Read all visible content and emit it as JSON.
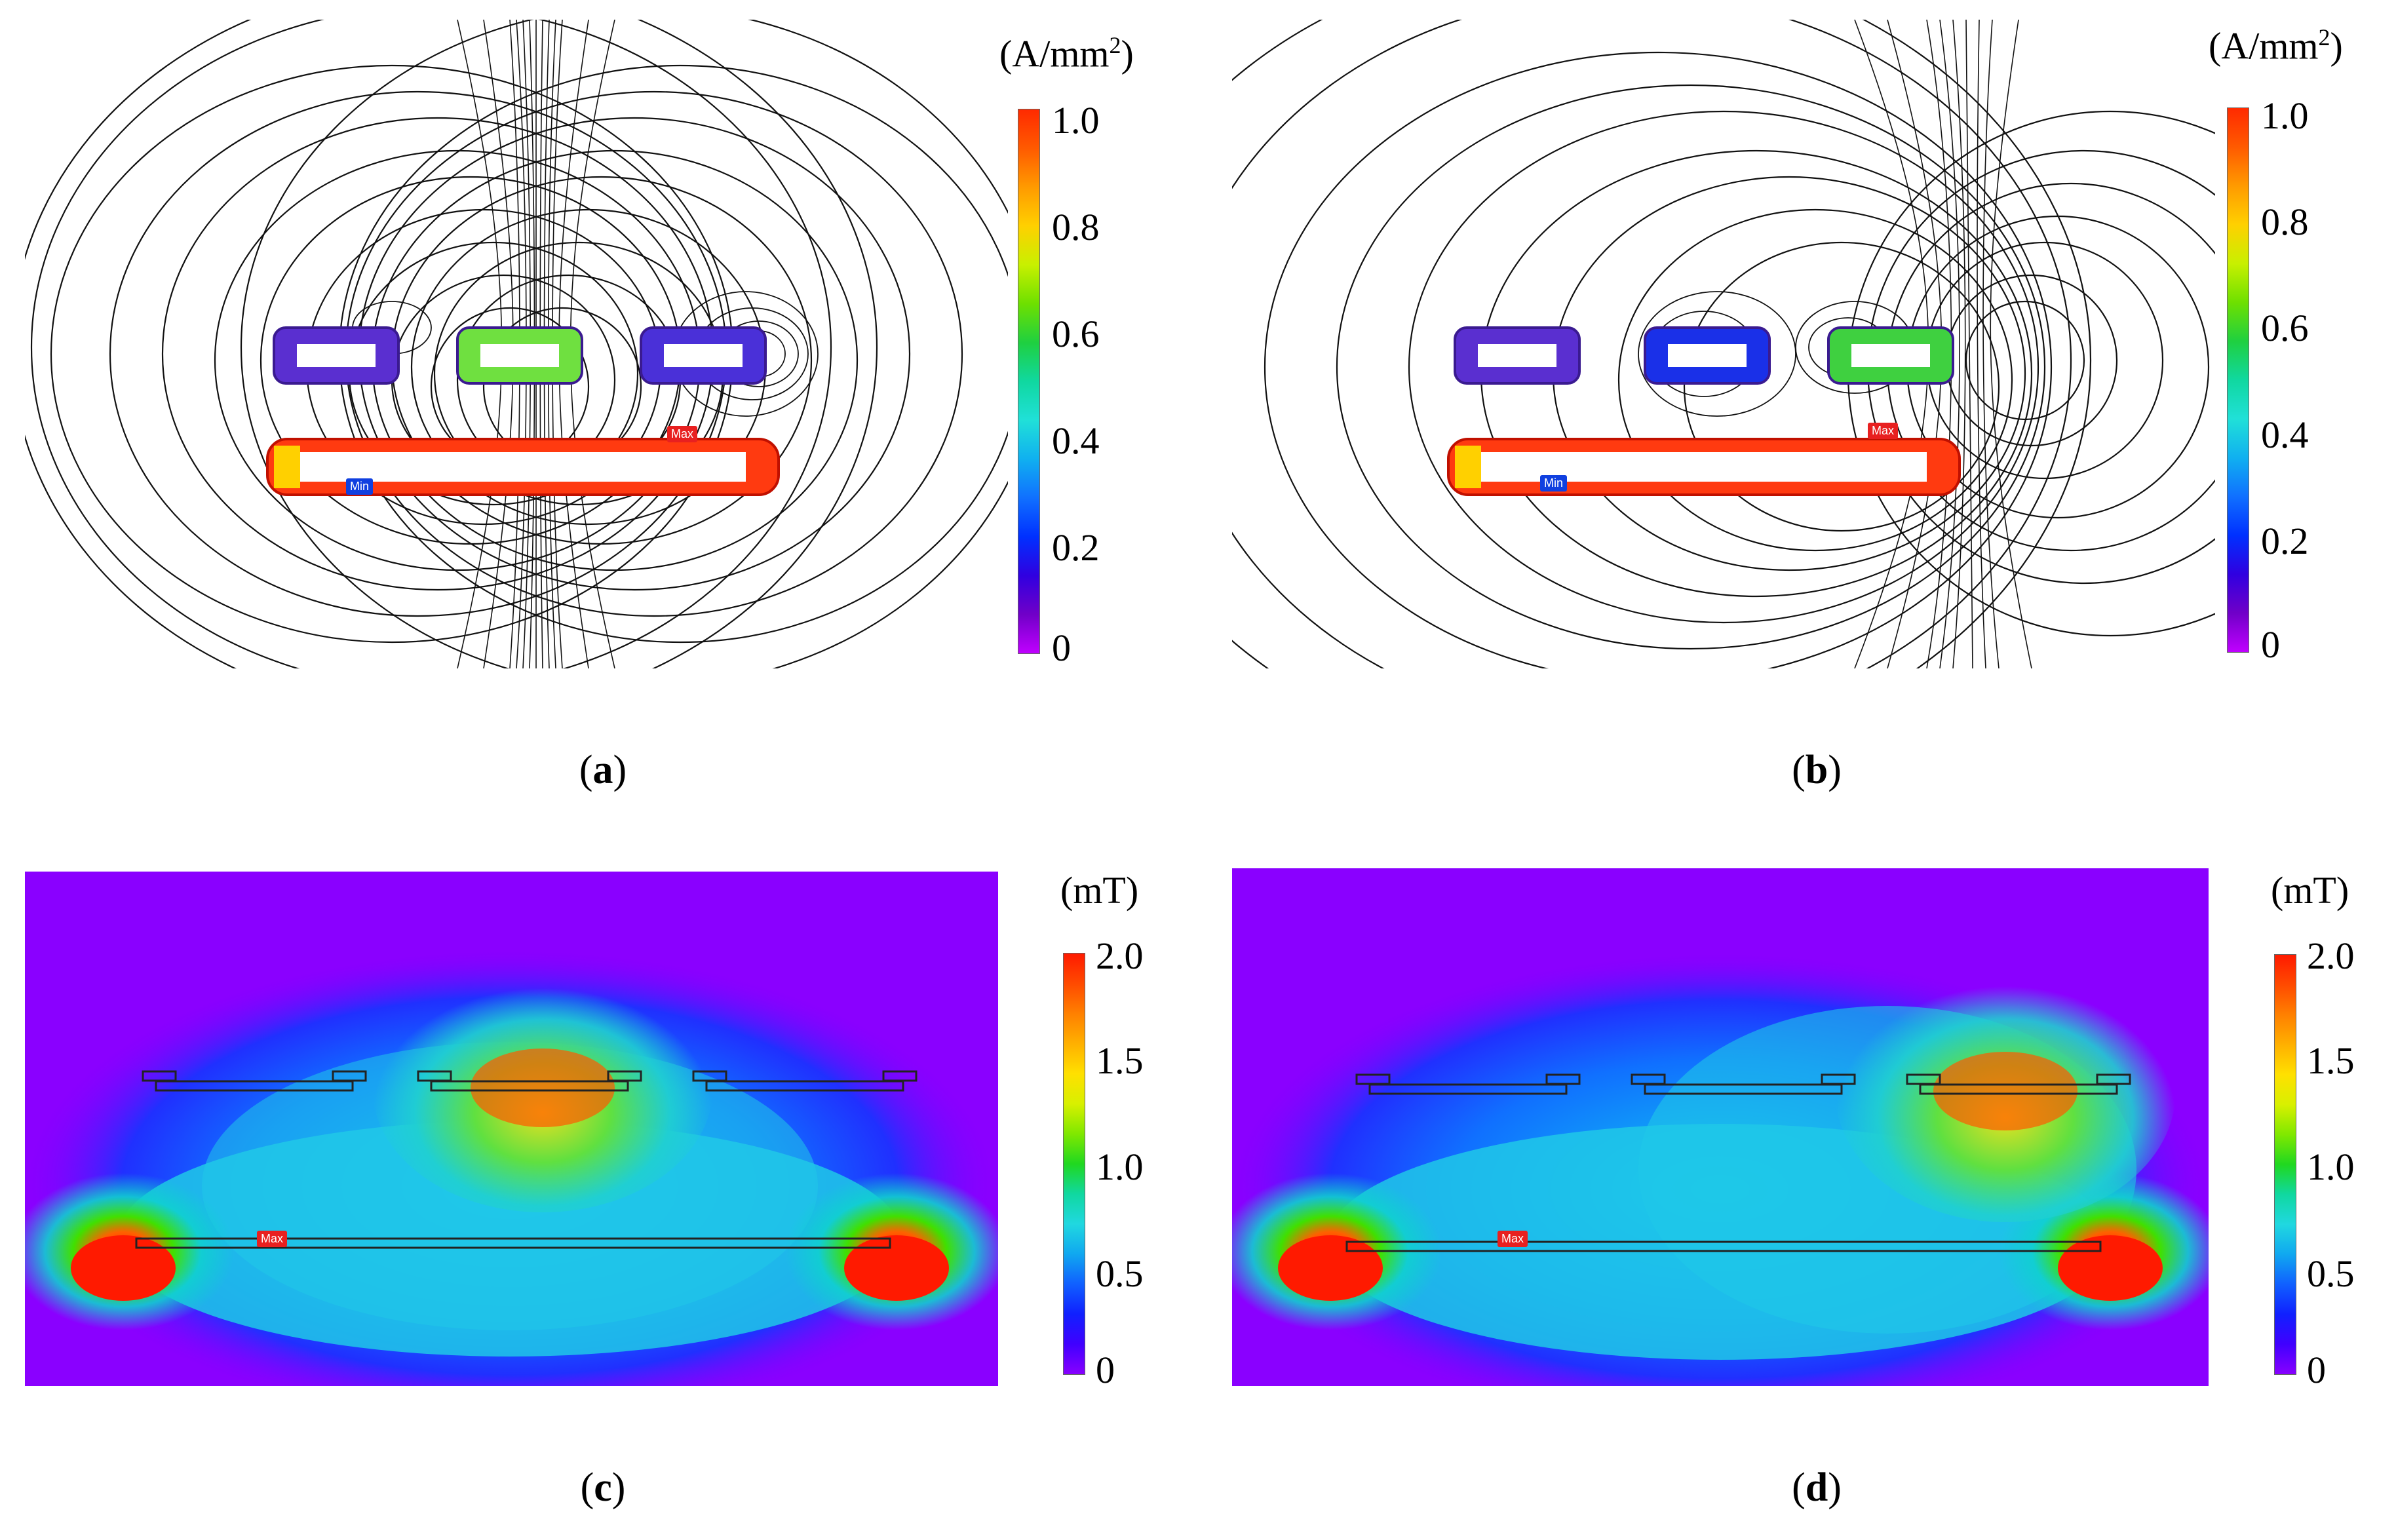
{
  "panels": [
    {
      "id": "a",
      "caption": "a",
      "unit_main": "(A/mm",
      "unit_sup": "2",
      "unit_end": ")",
      "ticks": [
        "1.0",
        "0.8",
        "0.6",
        "0.4",
        "0.2",
        "0"
      ],
      "max_tag": "Max",
      "min_tag": "Min"
    },
    {
      "id": "b",
      "caption": "b",
      "unit_main": "(A/mm",
      "unit_sup": "2",
      "unit_end": ")",
      "ticks": [
        "1.0",
        "0.8",
        "0.6",
        "0.4",
        "0.2",
        "0"
      ],
      "max_tag": "Max",
      "min_tag": "Min"
    },
    {
      "id": "c",
      "caption": "c",
      "unit_main": "(mT)",
      "unit_sup": "",
      "unit_end": "",
      "ticks": [
        "2.0",
        "1.5",
        "1.0",
        "0.5",
        "0"
      ],
      "max_tag": "Max"
    },
    {
      "id": "d",
      "caption": "d",
      "unit_main": "(mT)",
      "unit_sup": "",
      "unit_end": "",
      "ticks": [
        "2.0",
        "1.5",
        "1.0",
        "0.5",
        "0"
      ],
      "max_tag": "Max"
    }
  ],
  "colors": {
    "colorbar_current": [
      "#ff2a00",
      "#ff5a00",
      "#ff9a00",
      "#ffd000",
      "#c8f000",
      "#6ee000",
      "#1fd040",
      "#10d8a0",
      "#20e0d8",
      "#10b0f0",
      "#1070ff",
      "#0030ff",
      "#3000e0",
      "#7000c8",
      "#c000ff"
    ],
    "colorbar_field": [
      "#ff1a00",
      "#ff4a00",
      "#ff8000",
      "#ffb000",
      "#ffe000",
      "#d8f000",
      "#80e800",
      "#20d820",
      "#10d8a0",
      "#20d8e0",
      "#10a8f0",
      "#1060ff",
      "#1020ff",
      "#4000ff",
      "#8800ff"
    ]
  }
}
